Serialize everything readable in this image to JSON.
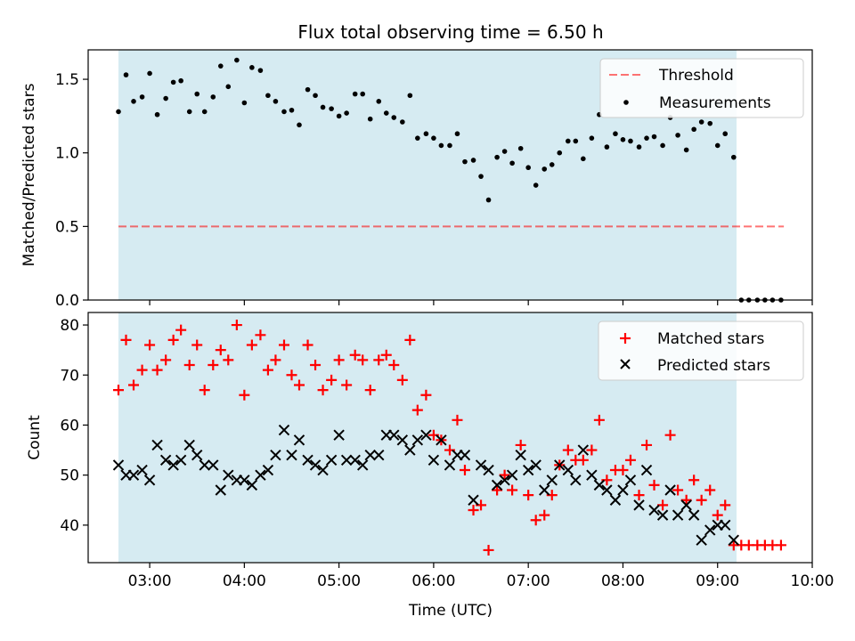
{
  "title": "Flux total observing time = 6.50 h",
  "xlabel": "Time (UTC)",
  "colors": {
    "shade": "#add8e6",
    "threshold": "#ff0000",
    "measurements": "#000000",
    "matched": "#ff0000",
    "predicted": "#000000"
  },
  "chart_data": [
    {
      "type": "scatter",
      "title": "Flux total observing time = 6.50 h",
      "xlabel": "",
      "ylabel": "Matched/Predicted stars",
      "x_unit": "hours UTC",
      "xlim": [
        2.35,
        10.0
      ],
      "ylim": [
        0.0,
        1.7
      ],
      "x_ticks": [
        3,
        4,
        5,
        6,
        7,
        8,
        9,
        10
      ],
      "x_tick_labels": [
        "",
        "",
        "",
        "",
        "",
        "",
        "",
        ""
      ],
      "y_ticks": [
        0.0,
        0.5,
        1.0,
        1.5
      ],
      "y_tick_labels": [
        "0.0",
        "0.5",
        "1.0",
        "1.5"
      ],
      "shaded_x_range": [
        2.67,
        9.2
      ],
      "legend": {
        "position": "top-right",
        "entries": [
          "Threshold",
          "Measurements"
        ]
      },
      "threshold": {
        "name": "Threshold",
        "y": 0.5,
        "x_range": [
          2.67,
          9.7
        ],
        "style": "dashed"
      },
      "series": [
        {
          "name": "Measurements",
          "marker": "dot",
          "x": [
            2.67,
            2.75,
            2.83,
            2.92,
            3.0,
            3.08,
            3.17,
            3.25,
            3.33,
            3.42,
            3.5,
            3.58,
            3.67,
            3.75,
            3.83,
            3.92,
            4.0,
            4.08,
            4.17,
            4.25,
            4.33,
            4.42,
            4.5,
            4.58,
            4.67,
            4.75,
            4.83,
            4.92,
            5.0,
            5.08,
            5.17,
            5.25,
            5.33,
            5.42,
            5.5,
            5.58,
            5.67,
            5.75,
            5.83,
            5.92,
            6.0,
            6.08,
            6.17,
            6.25,
            6.33,
            6.42,
            6.5,
            6.58,
            6.67,
            6.75,
            6.83,
            6.92,
            7.0,
            7.08,
            7.17,
            7.25,
            7.33,
            7.42,
            7.5,
            7.58,
            7.67,
            7.75,
            7.83,
            7.92,
            8.0,
            8.08,
            8.17,
            8.25,
            8.33,
            8.42,
            8.5,
            8.58,
            8.67,
            8.75,
            8.83,
            8.92,
            9.0,
            9.08,
            9.17,
            9.25,
            9.33,
            9.42,
            9.5,
            9.58,
            9.67
          ],
          "y": [
            1.28,
            1.53,
            1.35,
            1.38,
            1.54,
            1.26,
            1.37,
            1.48,
            1.49,
            1.28,
            1.4,
            1.28,
            1.38,
            1.59,
            1.45,
            1.63,
            1.34,
            1.58,
            1.56,
            1.39,
            1.35,
            1.28,
            1.29,
            1.19,
            1.43,
            1.39,
            1.31,
            1.3,
            1.25,
            1.27,
            1.4,
            1.4,
            1.23,
            1.35,
            1.27,
            1.24,
            1.21,
            1.39,
            1.1,
            1.13,
            1.1,
            1.05,
            1.05,
            1.13,
            0.94,
            0.95,
            0.84,
            0.68,
            0.97,
            1.01,
            0.93,
            1.03,
            0.9,
            0.78,
            0.89,
            0.92,
            1.0,
            1.08,
            1.08,
            0.96,
            1.1,
            1.26,
            1.04,
            1.13,
            1.09,
            1.08,
            1.04,
            1.1,
            1.11,
            1.05,
            1.24,
            1.12,
            1.02,
            1.16,
            1.21,
            1.2,
            1.05,
            1.13,
            0.97,
            0.0,
            0.0,
            0.0,
            0.0,
            0.0,
            0.0
          ]
        }
      ]
    },
    {
      "type": "scatter",
      "xlabel": "Time (UTC)",
      "ylabel": "Count",
      "x_unit": "hours UTC",
      "xlim": [
        2.35,
        10.0
      ],
      "ylim": [
        32.5,
        82.5
      ],
      "x_ticks": [
        3,
        4,
        5,
        6,
        7,
        8,
        9,
        10
      ],
      "x_tick_labels": [
        "03:00",
        "04:00",
        "05:00",
        "06:00",
        "07:00",
        "08:00",
        "09:00",
        "10:00"
      ],
      "y_ticks": [
        40,
        50,
        60,
        70,
        80
      ],
      "y_tick_labels": [
        "40",
        "50",
        "60",
        "70",
        "80"
      ],
      "shaded_x_range": [
        2.67,
        9.2
      ],
      "legend": {
        "position": "top-right",
        "entries": [
          "Matched stars",
          "Predicted stars"
        ]
      },
      "series": [
        {
          "name": "Matched stars",
          "marker": "plus",
          "x": [
            2.67,
            2.75,
            2.83,
            2.92,
            3.0,
            3.08,
            3.17,
            3.25,
            3.33,
            3.42,
            3.5,
            3.58,
            3.67,
            3.75,
            3.83,
            3.92,
            4.0,
            4.08,
            4.17,
            4.25,
            4.33,
            4.42,
            4.5,
            4.58,
            4.67,
            4.75,
            4.83,
            4.92,
            5.0,
            5.08,
            5.17,
            5.25,
            5.33,
            5.42,
            5.5,
            5.58,
            5.67,
            5.75,
            5.83,
            5.92,
            6.0,
            6.08,
            6.17,
            6.25,
            6.33,
            6.42,
            6.5,
            6.58,
            6.67,
            6.75,
            6.83,
            6.92,
            7.0,
            7.08,
            7.17,
            7.25,
            7.33,
            7.42,
            7.5,
            7.58,
            7.67,
            7.75,
            7.83,
            7.92,
            8.0,
            8.08,
            8.17,
            8.25,
            8.33,
            8.42,
            8.5,
            8.58,
            8.67,
            8.75,
            8.83,
            8.92,
            9.0,
            9.08,
            9.17,
            9.25,
            9.33,
            9.42,
            9.5,
            9.58,
            9.67
          ],
          "y": [
            67,
            77,
            68,
            71,
            76,
            71,
            73,
            77,
            79,
            72,
            76,
            67,
            72,
            75,
            73,
            80,
            66,
            76,
            78,
            71,
            73,
            76,
            70,
            68,
            76,
            72,
            67,
            69,
            73,
            68,
            74,
            73,
            67,
            73,
            74,
            72,
            69,
            77,
            63,
            66,
            58,
            57,
            55,
            61,
            51,
            43,
            44,
            35,
            47,
            50,
            47,
            56,
            46,
            41,
            42,
            46,
            52,
            55,
            53,
            53,
            55,
            61,
            49,
            51,
            51,
            53,
            46,
            56,
            48,
            44,
            58,
            47,
            45,
            49,
            45,
            47,
            42,
            44,
            36,
            36,
            36,
            36,
            36,
            36,
            36
          ]
        },
        {
          "name": "Predicted stars",
          "marker": "x",
          "x": [
            2.67,
            2.75,
            2.83,
            2.92,
            3.0,
            3.08,
            3.17,
            3.25,
            3.33,
            3.42,
            3.5,
            3.58,
            3.67,
            3.75,
            3.83,
            3.92,
            4.0,
            4.08,
            4.17,
            4.25,
            4.33,
            4.42,
            4.5,
            4.58,
            4.67,
            4.75,
            4.83,
            4.92,
            5.0,
            5.08,
            5.17,
            5.25,
            5.33,
            5.42,
            5.5,
            5.58,
            5.67,
            5.75,
            5.83,
            5.92,
            6.0,
            6.08,
            6.17,
            6.25,
            6.33,
            6.42,
            6.5,
            6.58,
            6.67,
            6.75,
            6.83,
            6.92,
            7.0,
            7.08,
            7.17,
            7.25,
            7.33,
            7.42,
            7.5,
            7.58,
            7.67,
            7.75,
            7.83,
            7.92,
            8.0,
            8.08,
            8.17,
            8.25,
            8.33,
            8.42,
            8.5,
            8.58,
            8.67,
            8.75,
            8.83,
            8.92,
            9.0,
            9.08,
            9.17
          ],
          "y": [
            52,
            50,
            50,
            51,
            49,
            56,
            53,
            52,
            53,
            56,
            54,
            52,
            52,
            47,
            50,
            49,
            49,
            48,
            50,
            51,
            54,
            59,
            54,
            57,
            53,
            52,
            51,
            53,
            58,
            53,
            53,
            52,
            54,
            54,
            58,
            58,
            57,
            55,
            57,
            58,
            53,
            57,
            52,
            54,
            54,
            45,
            52,
            51,
            48,
            49,
            50,
            54,
            51,
            52,
            47,
            49,
            52,
            51,
            49,
            55,
            50,
            48,
            47,
            45,
            47,
            49,
            44,
            51,
            43,
            42,
            47,
            42,
            44,
            42,
            37,
            39,
            40,
            40,
            37
          ]
        }
      ]
    }
  ]
}
